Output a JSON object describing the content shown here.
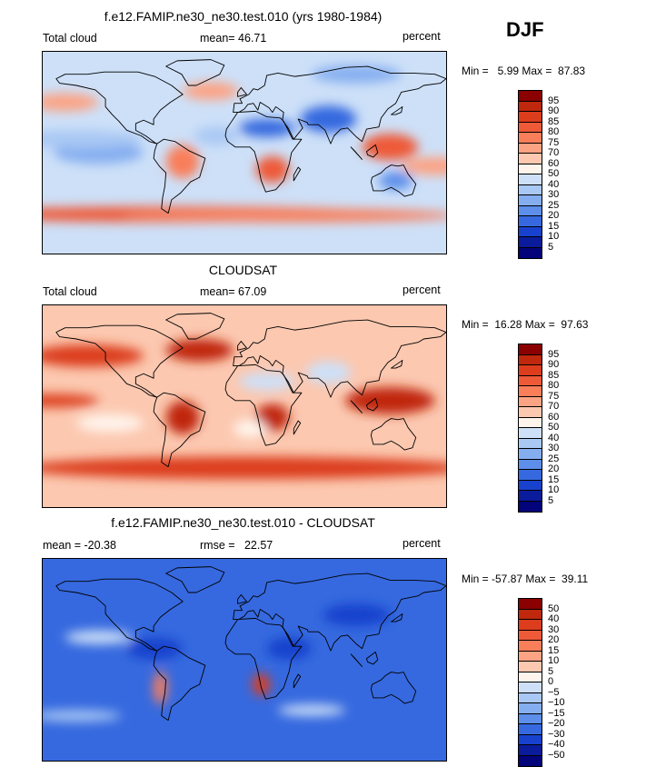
{
  "season": "DJF",
  "chart_data": [
    {
      "type": "heatmap",
      "title": "f.e12.FAMIP.ne30_ne30.test.010 (yrs 1980-1984)",
      "left_label": "Total cloud",
      "center_label": "mean=  46.71",
      "units": "percent",
      "minmax": "Min =   5.99 Max =  87.83",
      "mean": 46.71,
      "min": 5.99,
      "max": 87.83,
      "levels": [
        "95",
        "90",
        "85",
        "80",
        "75",
        "70",
        "60",
        "50",
        "40",
        "30",
        "25",
        "20",
        "15",
        "10",
        "5"
      ],
      "colors": [
        "#8b0000",
        "#c0280d",
        "#dc3d1c",
        "#ee5a38",
        "#f97e5a",
        "#fca383",
        "#fcc8b0",
        "#fff4ec",
        "#cde0f8",
        "#a9c8f4",
        "#85aef0",
        "#5c8eea",
        "#3669df",
        "#1842cd",
        "#0a1c9c",
        "#03037a"
      ],
      "regions": [
        {
          "lon": -60,
          "lat": -55,
          "v": 80,
          "rx": 200,
          "ry": 7
        },
        {
          "lon": 40,
          "lat": -56,
          "v": 75,
          "rx": 150,
          "ry": 6
        },
        {
          "lon": -130,
          "lat": 0,
          "v": 28,
          "rx": 40,
          "ry": 10
        },
        {
          "lon": -150,
          "lat": 12,
          "v": 32,
          "rx": 60,
          "ry": 8
        },
        {
          "lon": 130,
          "lat": 5,
          "v": 80,
          "rx": 25,
          "ry": 12
        },
        {
          "lon": 170,
          "lat": -12,
          "v": 72,
          "rx": 30,
          "ry": 8
        },
        {
          "lon": -55,
          "lat": -8,
          "v": 78,
          "rx": 15,
          "ry": 15
        },
        {
          "lon": 25,
          "lat": -15,
          "v": 82,
          "rx": 15,
          "ry": 12
        },
        {
          "lon": 75,
          "lat": 30,
          "v": 15,
          "rx": 25,
          "ry": 12
        },
        {
          "lon": 20,
          "lat": 22,
          "v": 18,
          "rx": 25,
          "ry": 8
        },
        {
          "lon": 135,
          "lat": -25,
          "v": 22,
          "rx": 15,
          "ry": 8
        },
        {
          "lon": -160,
          "lat": 45,
          "v": 70,
          "rx": 30,
          "ry": 8
        },
        {
          "lon": -30,
          "lat": 55,
          "v": 72,
          "rx": 25,
          "ry": 8
        },
        {
          "lon": -25,
          "lat": 15,
          "v": 30,
          "rx": 20,
          "ry": 8
        },
        {
          "lon": 100,
          "lat": 70,
          "v": 28,
          "rx": 40,
          "ry": 8
        }
      ]
    },
    {
      "type": "heatmap",
      "title": "CLOUDSAT",
      "left_label": "Total cloud",
      "center_label": "mean=  67.09",
      "units": "percent",
      "minmax": "Min =  16.28 Max =  97.63",
      "mean": 67.09,
      "min": 16.28,
      "max": 97.63,
      "levels": [
        "95",
        "90",
        "85",
        "80",
        "75",
        "70",
        "60",
        "50",
        "40",
        "30",
        "25",
        "20",
        "15",
        "10",
        "5"
      ],
      "colors": [
        "#8b0000",
        "#c0280d",
        "#dc3d1c",
        "#ee5a38",
        "#f97e5a",
        "#fca383",
        "#fcc8b0",
        "#fff4ec",
        "#cde0f8",
        "#a9c8f4",
        "#85aef0",
        "#5c8eea",
        "#3669df",
        "#1842cd",
        "#0a1c9c",
        "#03037a"
      ],
      "regions": [
        {
          "lon": 0,
          "lat": -55,
          "v": 88,
          "rx": 200,
          "ry": 10
        },
        {
          "lon": -140,
          "lat": 45,
          "v": 88,
          "rx": 50,
          "ry": 10
        },
        {
          "lon": -40,
          "lat": 50,
          "v": 90,
          "rx": 30,
          "ry": 10
        },
        {
          "lon": 130,
          "lat": 5,
          "v": 92,
          "rx": 40,
          "ry": 12
        },
        {
          "lon": -55,
          "lat": -10,
          "v": 92,
          "rx": 15,
          "ry": 15
        },
        {
          "lon": 25,
          "lat": -10,
          "v": 90,
          "rx": 15,
          "ry": 12
        },
        {
          "lon": -120,
          "lat": -15,
          "v": 50,
          "rx": 30,
          "ry": 8
        },
        {
          "lon": 5,
          "lat": -20,
          "v": 55,
          "rx": 15,
          "ry": 8
        },
        {
          "lon": -170,
          "lat": 5,
          "v": 85,
          "rx": 40,
          "ry": 6
        },
        {
          "lon": 20,
          "lat": 22,
          "v": 40,
          "rx": 25,
          "ry": 8
        },
        {
          "lon": 75,
          "lat": 30,
          "v": 45,
          "rx": 20,
          "ry": 10
        }
      ]
    },
    {
      "type": "heatmap",
      "title": "f.e12.FAMIP.ne30_ne30.test.010 - CLOUDSAT",
      "left_label": "mean = -20.38",
      "center_label": "rmse =   22.57",
      "units": "percent",
      "minmax": "Min = -57.87 Max =  39.11",
      "mean": -20.38,
      "rmse": 22.57,
      "min": -57.87,
      "max": 39.11,
      "levels": [
        "50",
        "40",
        "30",
        "20",
        "15",
        "10",
        "5",
        "0",
        "-5",
        "-10",
        "-15",
        "-20",
        "-30",
        "-40",
        "-50"
      ],
      "colors": [
        "#8b0000",
        "#c0280d",
        "#dc3d1c",
        "#ee5a38",
        "#f97e5a",
        "#fca383",
        "#fcc8b0",
        "#fff4ec",
        "#cde0f8",
        "#a9c8f4",
        "#85aef0",
        "#5c8eea",
        "#3669df",
        "#1842cd",
        "#0a1c9c",
        "#03037a"
      ],
      "regions": [
        {
          "lon": 15,
          "lat": -22,
          "v": 30,
          "rx": 8,
          "ry": 10
        },
        {
          "lon": -75,
          "lat": -25,
          "v": 15,
          "rx": 6,
          "ry": 15
        },
        {
          "lon": -130,
          "lat": 20,
          "v": -5,
          "rx": 30,
          "ry": 6
        },
        {
          "lon": 100,
          "lat": 40,
          "v": -40,
          "rx": 30,
          "ry": 10
        },
        {
          "lon": -80,
          "lat": 10,
          "v": -35,
          "rx": 25,
          "ry": 10
        },
        {
          "lon": 40,
          "lat": 10,
          "v": -32,
          "rx": 20,
          "ry": 10
        },
        {
          "lon": -150,
          "lat": -50,
          "v": -8,
          "rx": 40,
          "ry": 5
        },
        {
          "lon": 60,
          "lat": -45,
          "v": -5,
          "rx": 30,
          "ry": 5
        }
      ]
    }
  ]
}
